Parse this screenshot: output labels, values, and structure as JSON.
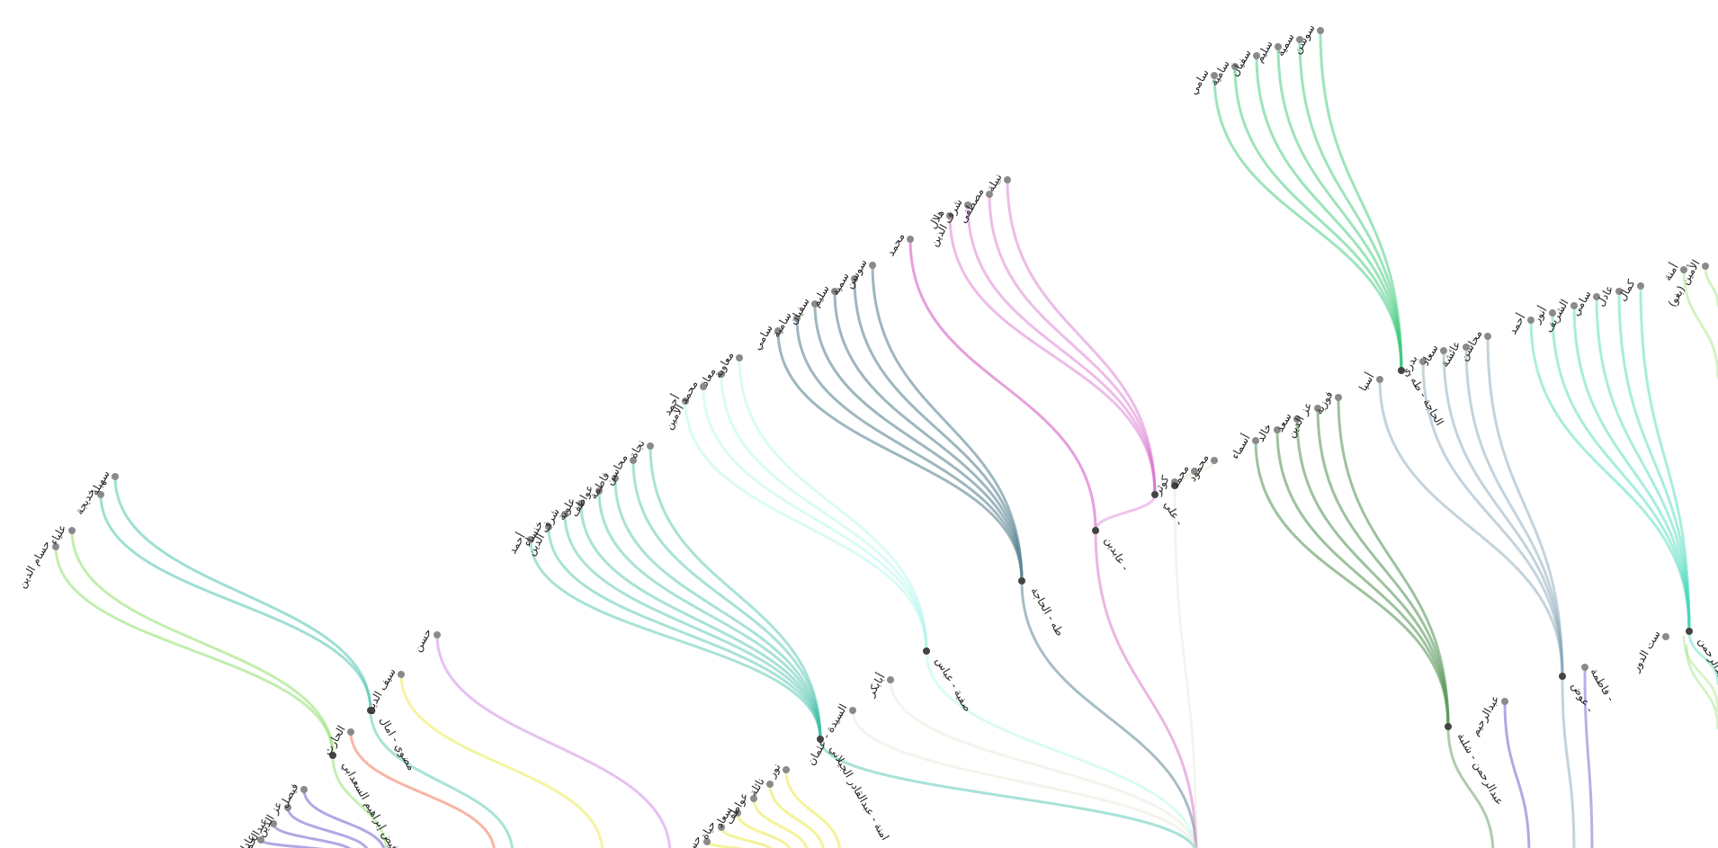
{
  "tree": {
    "colors": {
      "c1": "#3cc97a",
      "c2": "#5e8795",
      "c3": "#d86bc9",
      "c4": "#e0e0cc",
      "c5": "#5b9a5b",
      "c6": "#8aa7b8",
      "c7": "#3fd6b5",
      "c8": "#8fe06a",
      "c9": "#7b6fd0",
      "c10": "#3fbfa7",
      "c11": "#aef7e9",
      "c12": "#f07a5a",
      "c13": "#e9e946",
      "c14": "#d28de8"
    },
    "labels": {
      "s1": "سامي",
      "s2": "سامية",
      "s3": "سفيان",
      "s4": "سليم",
      "s5": "سمية",
      "s6": "سوسن",
      "t1": "هلال",
      "t2": "شرف الدين",
      "t3": "مصطفى",
      "t4": "نبيلة",
      "mohamed": "محمد",
      "g1": "سامي",
      "g2": "سامية",
      "g3": "سفيان",
      "g4": "سليم",
      "g5": "سمية",
      "g6": "سوسن",
      "m1": "أحمد",
      "m2": "محمد الأمين",
      "m3": "معاذ",
      "m4": "معاوية",
      "a1": "أحمد",
      "a2": "خنساء",
      "a3": "شرف الدين",
      "a4": "علوية",
      "a5": "عواطف",
      "a6": "فاطمة",
      "a7": "محاسن",
      "a8": "نجاة",
      "k1": "كوثر",
      "k2": "محمد",
      "k3": "محمود",
      "f1": "أسماء",
      "f2": "خالد",
      "f3": "سعد",
      "f4": "عز الدين",
      "f5": "فوزية",
      "q1": "أسيا",
      "q2": "بدري",
      "q3": "سعاد",
      "q4": "عائشة",
      "q5": "محاسن",
      "r1": "أحمد",
      "r2": "أنور",
      "r3": "الشريف",
      "r4": "سامي",
      "r5": "عادل",
      "r6": "كمال",
      "p1": "أمنة",
      "p2": "الأمين (بغو)",
      "l1": "حسام الدين",
      "l2": "علياء",
      "l3": "خديجة",
      "l4": "سهيلة",
      "hasan": "حسن",
      "seif": "سيف الدين",
      "harith": "الحارث",
      "abu_bakr": "أبابكر",
      "sayeda": "السيدة - عثمان",
      "abdelrahim": "عبدالرحيم",
      "fatima": "فاطمة -",
      "sit_aldur": "ست الدور",
      "n_faisal": "فيصل",
      "n_ezz": "عز الدين",
      "n_abdulhamid": "عبدالحميد",
      "n_adel": "عادل",
      "y_nour": "نور",
      "y_naela": "نائلة",
      "y_awatif": "عواطف",
      "y_soad": "سعاد",
      "y_haya": "حياة",
      "y_hosn": "حسن",
      "hub_c1": "الحاجة - طه",
      "hub_c2": "طه - الحاجة",
      "hub_c3": "عابدين -",
      "hub_c4": "علي -",
      "hub_c5": "عبدالرحمن - شلبة",
      "hub_c6": "عوض -",
      "hub_c7": "عبدالرحمن -",
      "hub_c10": "امنة - عبدالقادر الجيلاني",
      "hub_c11": "صفية - عباس",
      "hub_c8": "امنة - فيض إبراهيم السعدابي",
      "hub_left": "مضوي - امال"
    }
  }
}
